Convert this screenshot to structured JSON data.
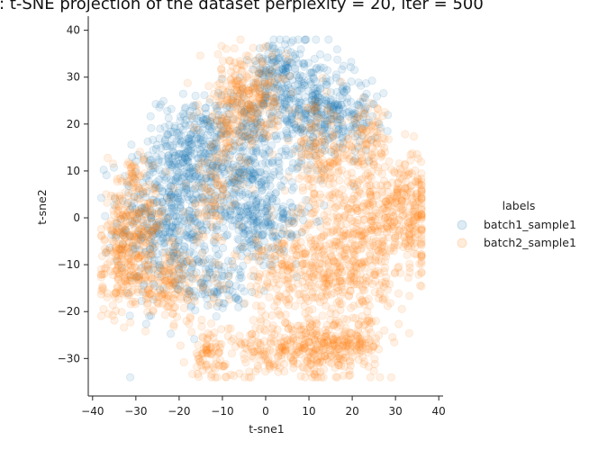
{
  "chart_data": {
    "type": "scatter",
    "title": "t-SNE projection of the dataset perplexity = 20, iter = 500",
    "title_prefix": ":",
    "xlabel": "t-sne1",
    "ylabel": "t-sne2",
    "xlim": [
      -41,
      41
    ],
    "ylim": [
      -38,
      43
    ],
    "xticks": [
      -40,
      -30,
      -20,
      -10,
      0,
      10,
      20,
      30,
      40
    ],
    "yticks": [
      -30,
      -20,
      -10,
      0,
      10,
      20,
      30,
      40
    ],
    "legend": {
      "title": "labels",
      "position": "right"
    },
    "series": [
      {
        "name": "batch1_sample1",
        "color": "#1f77b4",
        "clusters": [
          {
            "cx": -22,
            "cy": 0,
            "sx": 6,
            "sy": 9,
            "n": 520
          },
          {
            "cx": -17,
            "cy": 16,
            "sx": 4,
            "sy": 5,
            "n": 200
          },
          {
            "cx": -5,
            "cy": 8,
            "sx": 5,
            "sy": 9,
            "n": 420
          },
          {
            "cx": 8,
            "cy": 24,
            "sx": 6,
            "sy": 6,
            "n": 360
          },
          {
            "cx": 3,
            "cy": 32,
            "sx": 3,
            "sy": 3,
            "n": 100
          },
          {
            "cx": 18,
            "cy": 22,
            "sx": 4,
            "sy": 4,
            "n": 140
          },
          {
            "cx": -12,
            "cy": -14,
            "sx": 4,
            "sy": 3,
            "n": 90
          },
          {
            "cx": 2,
            "cy": -2,
            "sx": 4,
            "sy": 4,
            "n": 110
          }
        ]
      },
      {
        "name": "batch2_sample1",
        "color": "#ff7f0e",
        "clusters": [
          {
            "cx": -33,
            "cy": -6,
            "sx": 3,
            "sy": 6,
            "n": 200
          },
          {
            "cx": -24,
            "cy": -14,
            "sx": 6,
            "sy": 4,
            "n": 230
          },
          {
            "cx": -30,
            "cy": 8,
            "sx": 3,
            "sy": 3,
            "n": 60
          },
          {
            "cx": -12,
            "cy": 5,
            "sx": 3,
            "sy": 6,
            "n": 100
          },
          {
            "cx": -7,
            "cy": 24,
            "sx": 4,
            "sy": 6,
            "n": 200
          },
          {
            "cx": -1,
            "cy": 26,
            "sx": 3,
            "sy": 4,
            "n": 110
          },
          {
            "cx": 12,
            "cy": 12,
            "sx": 3,
            "sy": 6,
            "n": 150
          },
          {
            "cx": 23,
            "cy": 16,
            "sx": 3,
            "sy": 4,
            "n": 100
          },
          {
            "cx": 26,
            "cy": 0,
            "sx": 7,
            "sy": 7,
            "n": 420
          },
          {
            "cx": 18,
            "cy": -12,
            "sx": 5,
            "sy": 6,
            "n": 240
          },
          {
            "cx": 5,
            "cy": -12,
            "sx": 6,
            "sy": 5,
            "n": 200
          },
          {
            "cx": 8,
            "cy": -28,
            "sx": 9,
            "sy": 3,
            "n": 340
          },
          {
            "cx": 20,
            "cy": -26,
            "sx": 4,
            "sy": 3,
            "n": 100
          },
          {
            "cx": -13,
            "cy": -29,
            "sx": 2,
            "sy": 2.5,
            "n": 70
          },
          {
            "cx": 33,
            "cy": 2,
            "sx": 2,
            "sy": 5,
            "n": 90
          },
          {
            "cx": -28,
            "cy": -2,
            "sx": 3,
            "sy": 4,
            "n": 90
          }
        ]
      }
    ]
  }
}
